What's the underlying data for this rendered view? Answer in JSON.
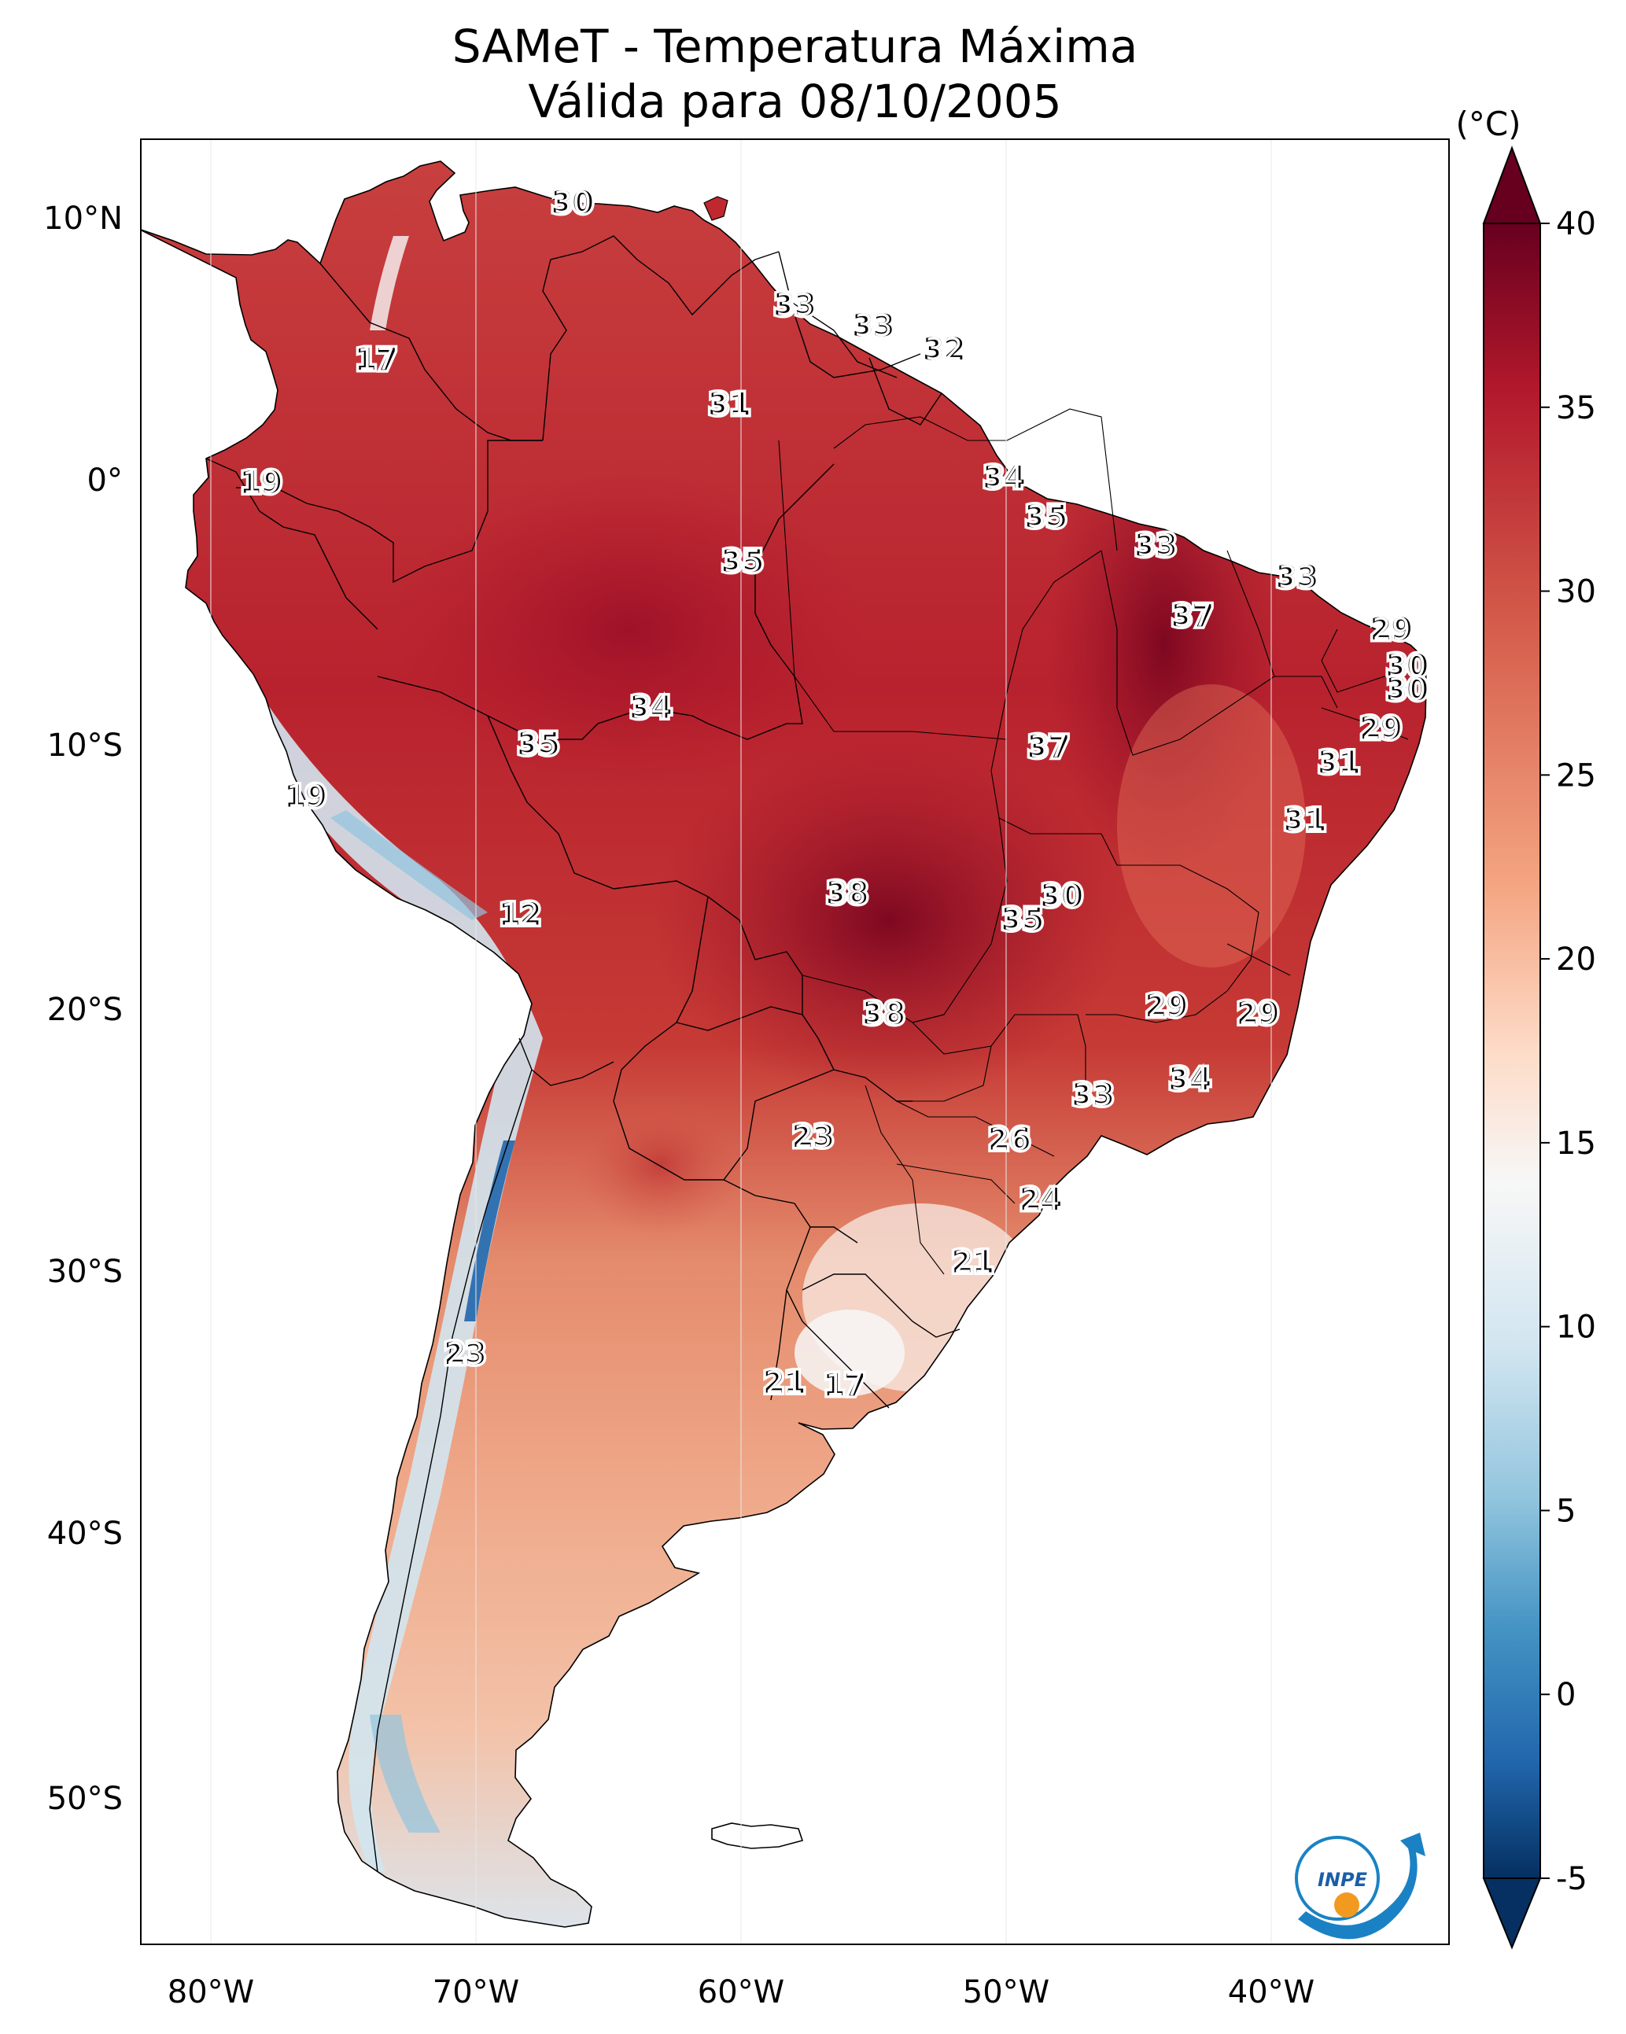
{
  "title": {
    "line1": "SAMeT - Temperatura Máxima",
    "line2": "Válida para 08/10/2005"
  },
  "map": {
    "lon_ticks": [
      "80°W",
      "70°W",
      "60°W",
      "50°W",
      "40°W"
    ],
    "lat_ticks": [
      "10°N",
      "0°",
      "10°S",
      "20°S",
      "30°S",
      "40°S",
      "50°S"
    ],
    "extent": {
      "lon_min": -83,
      "lon_max": -33,
      "lat_min": -56,
      "lat_max": 13
    }
  },
  "colorbar": {
    "unit": "(°C)",
    "ticks": [
      "40",
      "35",
      "30",
      "25",
      "20",
      "15",
      "10",
      "5",
      "0",
      "-5"
    ],
    "min": -5,
    "max": 40,
    "colors": [
      "#67001f",
      "#b2182b",
      "#d6604d",
      "#f4a582",
      "#fddbc7",
      "#f7f7f7",
      "#d1e5f0",
      "#92c5de",
      "#4393c3",
      "#2166ac",
      "#053061"
    ]
  },
  "labels": [
    {
      "text": "30",
      "lon": -66.5,
      "lat": 10.5
    },
    {
      "text": "17",
      "lon": -74.0,
      "lat": 4.5
    },
    {
      "text": "33",
      "lon": -58.0,
      "lat": 6.6
    },
    {
      "text": "33",
      "lon": -55.0,
      "lat": 5.8
    },
    {
      "text": "32",
      "lon": -52.3,
      "lat": 4.9
    },
    {
      "text": "31",
      "lon": -60.5,
      "lat": 2.8
    },
    {
      "text": "19",
      "lon": -78.4,
      "lat": -0.2
    },
    {
      "text": "34",
      "lon": -50.0,
      "lat": 0.0
    },
    {
      "text": "35",
      "lon": -48.4,
      "lat": -1.5
    },
    {
      "text": "33",
      "lon": -44.2,
      "lat": -2.6
    },
    {
      "text": "35",
      "lon": -60.0,
      "lat": -3.2
    },
    {
      "text": "33",
      "lon": -38.8,
      "lat": -3.8
    },
    {
      "text": "37",
      "lon": -42.8,
      "lat": -5.3
    },
    {
      "text": "29",
      "lon": -35.2,
      "lat": -5.8
    },
    {
      "text": "30",
      "lon": -34.6,
      "lat": -7.2
    },
    {
      "text": "30",
      "lon": -34.6,
      "lat": -8.1
    },
    {
      "text": "34",
      "lon": -63.5,
      "lat": -8.8
    },
    {
      "text": "35",
      "lon": -67.8,
      "lat": -10.2
    },
    {
      "text": "37",
      "lon": -48.3,
      "lat": -10.3
    },
    {
      "text": "29",
      "lon": -35.6,
      "lat": -9.6
    },
    {
      "text": "31",
      "lon": -37.2,
      "lat": -10.9
    },
    {
      "text": "19",
      "lon": -76.7,
      "lat": -12.2
    },
    {
      "text": "31",
      "lon": -38.5,
      "lat": -13.1
    },
    {
      "text": "38",
      "lon": -56.0,
      "lat": -15.9
    },
    {
      "text": "30",
      "lon": -47.8,
      "lat": -16.0
    },
    {
      "text": "35",
      "lon": -49.3,
      "lat": -16.9
    },
    {
      "text": "12",
      "lon": -68.5,
      "lat": -16.7
    },
    {
      "text": "29",
      "lon": -43.8,
      "lat": -20.2
    },
    {
      "text": "38",
      "lon": -54.6,
      "lat": -20.5
    },
    {
      "text": "29",
      "lon": -40.3,
      "lat": -20.5
    },
    {
      "text": "34",
      "lon": -42.9,
      "lat": -23.0
    },
    {
      "text": "33",
      "lon": -46.6,
      "lat": -23.6
    },
    {
      "text": "23",
      "lon": -57.3,
      "lat": -25.2
    },
    {
      "text": "26",
      "lon": -49.8,
      "lat": -25.3
    },
    {
      "text": "24",
      "lon": -48.6,
      "lat": -27.6
    },
    {
      "text": "21",
      "lon": -51.2,
      "lat": -30.0
    },
    {
      "text": "23",
      "lon": -70.6,
      "lat": -33.5
    },
    {
      "text": "21",
      "lon": -58.4,
      "lat": -34.6
    },
    {
      "text": "17",
      "lon": -56.1,
      "lat": -34.7
    }
  ],
  "logo": {
    "text": "INPE"
  }
}
